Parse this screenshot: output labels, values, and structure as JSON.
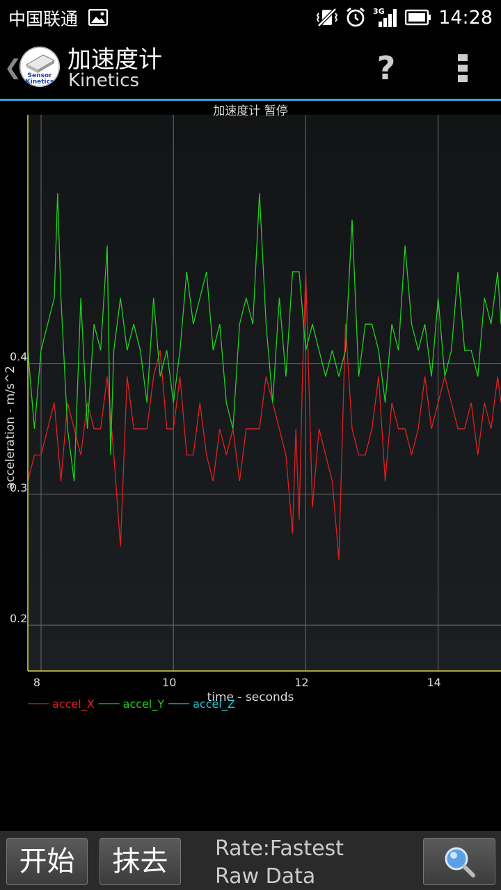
{
  "status_bar": {
    "carrier": "中国联通",
    "network": "3G",
    "time": "14:28"
  },
  "action_bar": {
    "title": "加速度计",
    "subtitle": "Kinetics",
    "logo_text_1": "Sensor",
    "logo_text_2": "Kinetics",
    "help_label": "?"
  },
  "chart_data": {
    "type": "line",
    "title": "加速度计 暂停",
    "xlabel": "time - seconds",
    "ylabel": "acceleration - m/s^2",
    "xlim": [
      7.8,
      14.95
    ],
    "ylim": [
      0.165,
      0.59
    ],
    "x_ticks": [
      8,
      10,
      12,
      14
    ],
    "y_ticks": [
      0.2,
      0.3,
      0.4
    ],
    "x_tick_labels": [
      "8",
      "10",
      "12",
      "14"
    ],
    "y_tick_labels": [
      "0.2",
      "0.3",
      "0.4"
    ],
    "grid": true,
    "legend_placement": "bottom-left",
    "series": [
      {
        "name": "accel_X",
        "color": "#e02020",
        "x": [
          7.8,
          7.9,
          8.0,
          8.1,
          8.2,
          8.3,
          8.4,
          8.5,
          8.6,
          8.7,
          8.8,
          8.9,
          9.0,
          9.1,
          9.2,
          9.3,
          9.4,
          9.5,
          9.6,
          9.7,
          9.8,
          9.9,
          10.0,
          10.1,
          10.2,
          10.3,
          10.4,
          10.5,
          10.6,
          10.7,
          10.8,
          10.9,
          11.0,
          11.1,
          11.2,
          11.3,
          11.4,
          11.5,
          11.6,
          11.7,
          11.8,
          11.85,
          11.9,
          11.95,
          12.0,
          12.1,
          12.2,
          12.3,
          12.4,
          12.5,
          12.6,
          12.7,
          12.8,
          12.9,
          13.0,
          13.1,
          13.2,
          13.3,
          13.4,
          13.5,
          13.6,
          13.7,
          13.8,
          13.9,
          14.0,
          14.1,
          14.2,
          14.3,
          14.4,
          14.5,
          14.6,
          14.7,
          14.8,
          14.9,
          14.95
        ],
        "y": [
          0.31,
          0.33,
          0.33,
          0.35,
          0.37,
          0.31,
          0.37,
          0.35,
          0.33,
          0.37,
          0.35,
          0.35,
          0.39,
          0.33,
          0.26,
          0.39,
          0.35,
          0.35,
          0.35,
          0.39,
          0.41,
          0.35,
          0.35,
          0.39,
          0.33,
          0.33,
          0.37,
          0.33,
          0.31,
          0.35,
          0.33,
          0.35,
          0.31,
          0.35,
          0.35,
          0.35,
          0.39,
          0.37,
          0.35,
          0.33,
          0.27,
          0.35,
          0.28,
          0.39,
          0.47,
          0.29,
          0.35,
          0.33,
          0.31,
          0.25,
          0.43,
          0.35,
          0.33,
          0.33,
          0.35,
          0.39,
          0.31,
          0.37,
          0.35,
          0.35,
          0.33,
          0.35,
          0.39,
          0.35,
          0.37,
          0.39,
          0.37,
          0.35,
          0.35,
          0.37,
          0.33,
          0.37,
          0.35,
          0.39,
          0.37
        ]
      },
      {
        "name": "accel_Y",
        "color": "#20d020",
        "x": [
          7.8,
          7.9,
          8.0,
          8.1,
          8.2,
          8.25,
          8.3,
          8.4,
          8.5,
          8.6,
          8.7,
          8.8,
          8.9,
          9.0,
          9.05,
          9.1,
          9.2,
          9.3,
          9.4,
          9.5,
          9.6,
          9.7,
          9.8,
          9.9,
          10.0,
          10.1,
          10.2,
          10.3,
          10.4,
          10.5,
          10.6,
          10.7,
          10.8,
          10.9,
          11.0,
          11.1,
          11.2,
          11.3,
          11.4,
          11.5,
          11.6,
          11.7,
          11.8,
          11.9,
          12.0,
          12.1,
          12.2,
          12.3,
          12.4,
          12.5,
          12.6,
          12.7,
          12.8,
          12.9,
          13.0,
          13.1,
          13.2,
          13.3,
          13.4,
          13.5,
          13.6,
          13.7,
          13.8,
          13.9,
          14.0,
          14.1,
          14.2,
          14.3,
          14.4,
          14.5,
          14.6,
          14.7,
          14.8,
          14.9,
          14.95
        ],
        "y": [
          0.41,
          0.35,
          0.41,
          0.43,
          0.45,
          0.53,
          0.45,
          0.35,
          0.31,
          0.45,
          0.35,
          0.43,
          0.41,
          0.49,
          0.33,
          0.41,
          0.45,
          0.41,
          0.43,
          0.41,
          0.37,
          0.45,
          0.39,
          0.41,
          0.37,
          0.41,
          0.47,
          0.43,
          0.45,
          0.47,
          0.41,
          0.43,
          0.37,
          0.35,
          0.43,
          0.45,
          0.43,
          0.53,
          0.43,
          0.37,
          0.45,
          0.39,
          0.47,
          0.47,
          0.41,
          0.43,
          0.41,
          0.39,
          0.41,
          0.39,
          0.41,
          0.51,
          0.39,
          0.43,
          0.43,
          0.41,
          0.37,
          0.43,
          0.41,
          0.49,
          0.43,
          0.41,
          0.43,
          0.39,
          0.45,
          0.39,
          0.41,
          0.47,
          0.41,
          0.41,
          0.39,
          0.45,
          0.43,
          0.47,
          0.43
        ]
      },
      {
        "name": "accel_Z",
        "color": "#20c8d8",
        "x": [],
        "y": []
      }
    ]
  },
  "bottom_bar": {
    "start_label": "开始",
    "clear_label": "抹去",
    "rate_label": "Rate:Fastest",
    "mode_label": "Raw Data"
  }
}
